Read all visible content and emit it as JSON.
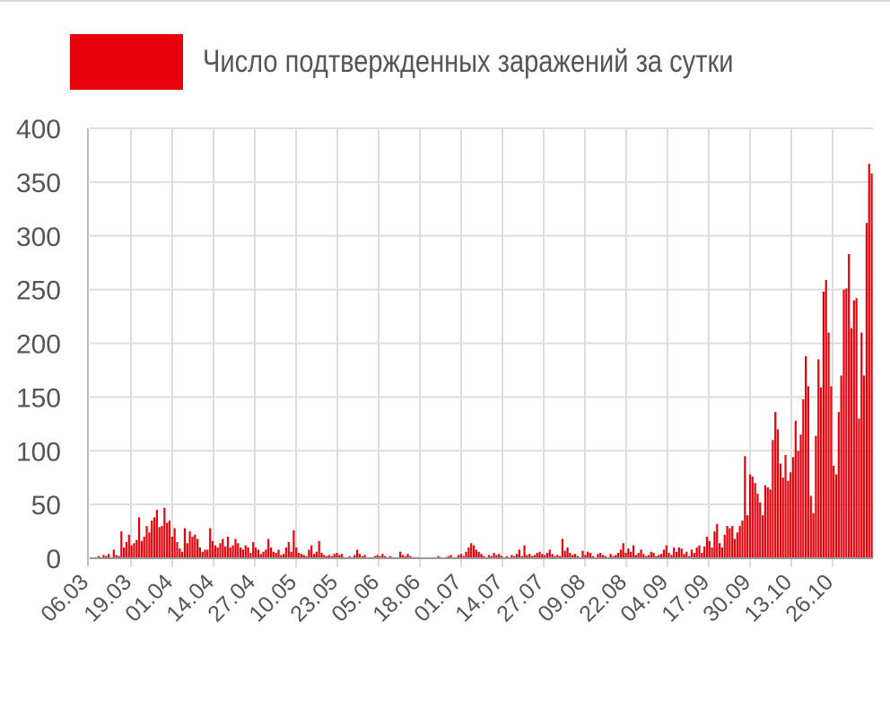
{
  "chart_data": {
    "type": "bar",
    "title": "",
    "xlabel": "",
    "ylabel": "",
    "legend": {
      "label": "Число подтвержденных заражений за сутки",
      "position": "top-left"
    },
    "color": "#e8000b",
    "grid": true,
    "ylim": [
      0,
      400
    ],
    "yticks": [
      0,
      50,
      100,
      150,
      200,
      250,
      300,
      350,
      400
    ],
    "x_start": "06.03",
    "x_tick_labels": [
      "06.03",
      "19.03",
      "01.04",
      "14.04",
      "27.04",
      "10.05",
      "23.05",
      "05.06",
      "18.06",
      "01.07",
      "14.07",
      "27.07",
      "09.08",
      "22.08",
      "04.09",
      "17.09",
      "30.09",
      "13.10",
      "26.10"
    ],
    "values": [
      0,
      0,
      1,
      2,
      1,
      3,
      2,
      4,
      1,
      8,
      3,
      2,
      25,
      10,
      15,
      22,
      12,
      14,
      17,
      38,
      16,
      20,
      30,
      24,
      35,
      38,
      45,
      29,
      30,
      47,
      33,
      35,
      20,
      28,
      15,
      9,
      6,
      28,
      14,
      25,
      20,
      22,
      18,
      10,
      6,
      8,
      8,
      28,
      16,
      12,
      10,
      14,
      18,
      11,
      20,
      10,
      12,
      18,
      14,
      10,
      8,
      12,
      10,
      5,
      15,
      10,
      8,
      4,
      6,
      8,
      18,
      10,
      6,
      5,
      8,
      3,
      4,
      10,
      15,
      6,
      26,
      10,
      5,
      4,
      3,
      2,
      8,
      12,
      4,
      6,
      16,
      5,
      3,
      2,
      3,
      2,
      4,
      5,
      3,
      4,
      1,
      0,
      2,
      1,
      3,
      8,
      4,
      2,
      3,
      1,
      1,
      0,
      2,
      3,
      2,
      4,
      2,
      1,
      2,
      1,
      0,
      1,
      6,
      3,
      2,
      4,
      2,
      1,
      1,
      1,
      0,
      0,
      0,
      0,
      0,
      1,
      0,
      2,
      1,
      0,
      1,
      2,
      3,
      1,
      1,
      3,
      4,
      2,
      6,
      10,
      14,
      12,
      8,
      6,
      4,
      2,
      1,
      3,
      2,
      5,
      3,
      4,
      2,
      1,
      2,
      1,
      3,
      2,
      4,
      8,
      2,
      12,
      3,
      4,
      2,
      3,
      5,
      6,
      4,
      3,
      5,
      8,
      4,
      2,
      3,
      2,
      18,
      7,
      10,
      5,
      3,
      4,
      2,
      1,
      7,
      3,
      6,
      5,
      2,
      1,
      4,
      5,
      3,
      2,
      1,
      4,
      2,
      3,
      5,
      8,
      14,
      5,
      9,
      6,
      12,
      3,
      5,
      8,
      4,
      2,
      3,
      6,
      5,
      2,
      3,
      4,
      8,
      12,
      5,
      3,
      10,
      6,
      10,
      9,
      4,
      6,
      2,
      8,
      5,
      10,
      12,
      5,
      11,
      20,
      16,
      10,
      25,
      32,
      14,
      10,
      22,
      30,
      28,
      30,
      18,
      24,
      30,
      35,
      95,
      40,
      78,
      76,
      70,
      60,
      52,
      40,
      68,
      66,
      64,
      110,
      136,
      120,
      88,
      75,
      96,
      72,
      80,
      94,
      128,
      100,
      115,
      148,
      188,
      160,
      58,
      42,
      114,
      185,
      159,
      248,
      259,
      210,
      160,
      86,
      78,
      136,
      170,
      250,
      251,
      283,
      214,
      240,
      242,
      130,
      210,
      170,
      312,
      367,
      358
    ]
  }
}
